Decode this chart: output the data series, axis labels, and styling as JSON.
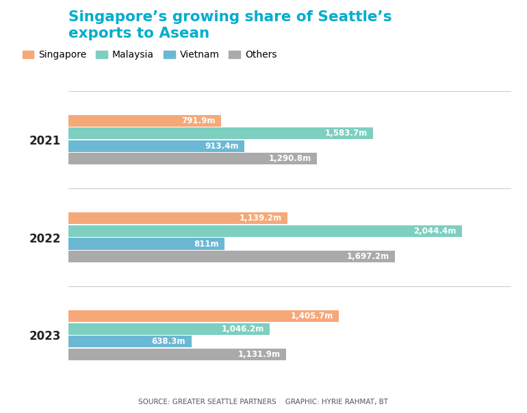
{
  "title_line1": "Singapore’s growing share of Seattle’s",
  "title_line2": "exports to Asean",
  "title_color": "#00AECC",
  "years": [
    "2021",
    "2022",
    "2023"
  ],
  "categories": [
    "Singapore",
    "Malaysia",
    "Vietnam",
    "Others"
  ],
  "values": {
    "Singapore": [
      791.9,
      1139.2,
      1405.7
    ],
    "Malaysia": [
      1583.7,
      2044.4,
      1046.2
    ],
    "Vietnam": [
      913.4,
      811.0,
      638.3
    ],
    "Others": [
      1290.8,
      1697.2,
      1131.9
    ]
  },
  "labels": {
    "Singapore": [
      "791.9m",
      "1,139.2m",
      "1,405.7m"
    ],
    "Malaysia": [
      "1,583.7m",
      "2,044.4m",
      "1,046.2m"
    ],
    "Vietnam": [
      "913.4m",
      "811m",
      "638.3m"
    ],
    "Others": [
      "1,290.8m",
      "1,697.2m",
      "1,131.9m"
    ]
  },
  "colors": {
    "Singapore": "#F5A878",
    "Malaysia": "#7DCFC0",
    "Vietnam": "#6BB8D4",
    "Others": "#AAAAAA"
  },
  "source_text": "SOURCE: GREATER SEATTLE PARTNERS    GRAPHIC: HYRIE RAHMAT, BT",
  "background_color": "#FFFFFF",
  "xlim": [
    0,
    2300
  ]
}
